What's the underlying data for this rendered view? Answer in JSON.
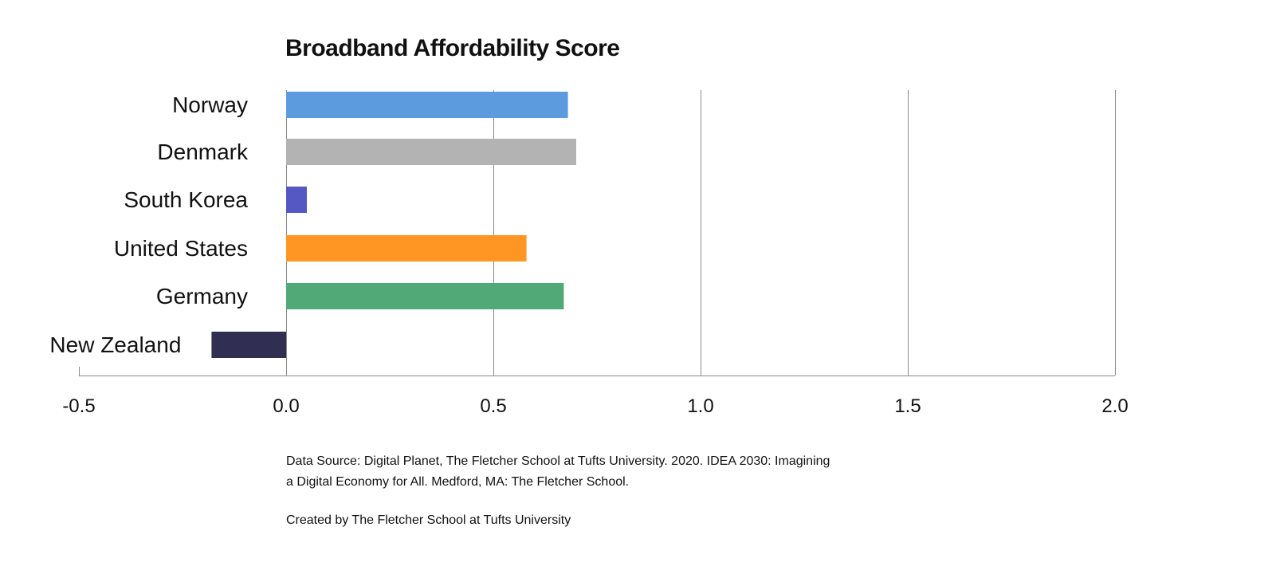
{
  "chart_data": {
    "type": "bar",
    "orientation": "horizontal",
    "title": "Broadband Affordability Score",
    "categories": [
      "Norway",
      "Denmark",
      "South Korea",
      "United States",
      "Germany",
      "New Zealand"
    ],
    "values": [
      0.68,
      0.7,
      0.05,
      0.58,
      0.67,
      -0.18
    ],
    "colors": [
      "#5b9bde",
      "#b3b3b3",
      "#5558c2",
      "#ff9522",
      "#50a977",
      "#302f52"
    ],
    "xlim": [
      -0.5,
      2.0
    ],
    "xticks": [
      "-0.5",
      "0.0",
      "0.5",
      "1.0",
      "1.5",
      "2.0"
    ],
    "xtick_values": [
      -0.5,
      0,
      0.5,
      1.0,
      1.5,
      2.0
    ],
    "grid": "vertical",
    "legend": "none"
  },
  "footer": {
    "source_line1": "Data Source: Digital Planet, The Fletcher School at Tufts University. 2020. IDEA 2030: Imagining",
    "source_line2": "a Digital Economy for All. Medford, MA: The Fletcher School.",
    "credit": "Created by The Fletcher School at Tufts University"
  }
}
